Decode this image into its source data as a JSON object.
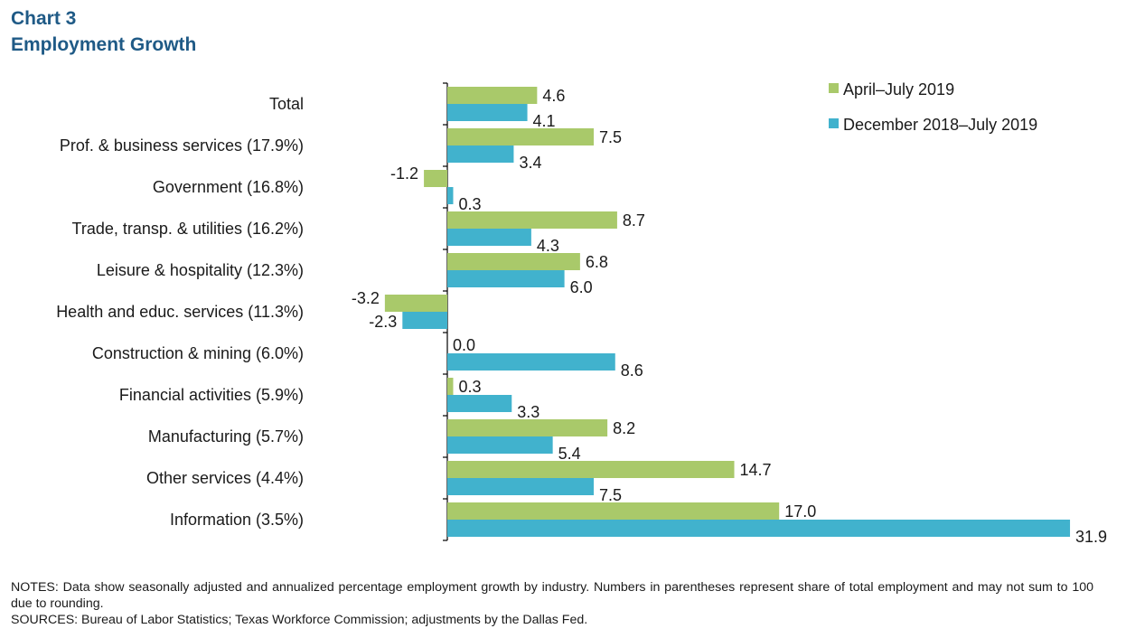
{
  "header": {
    "chart_number": "Chart 3",
    "title": "Employment  Growth"
  },
  "notes": {
    "notes_text": "NOTES:  Data show seasonally adjusted and annualized percentage employment growth by industry. Numbers in parentheses represent share of total employment and may not sum to 100 due to rounding.",
    "sources_text": "SOURCES:  Bureau of Labor Statistics; Texas Workforce Commission; adjustments  by the Dallas Fed."
  },
  "colors": {
    "april_july": "#a9c96a",
    "dec_july": "#41b2cd",
    "axis": "#000000",
    "title": "#1f5a86"
  },
  "chart_data": {
    "type": "bar",
    "orientation": "horizontal",
    "title": "Employment  Growth",
    "xlabel": "",
    "ylabel": "",
    "xlim": [
      -4,
      33
    ],
    "grid": false,
    "legend_position": "top-right",
    "categories": [
      "Total",
      "Prof. & business services (17.9%)",
      "Government (16.8%)",
      "Trade, transp. & utilities (16.2%)",
      "Leisure & hospitality (12.3%)",
      "Health and educ. services (11.3%)",
      "Construction & mining (6.0%)",
      "Financial activities (5.9%)",
      "Manufacturing (5.7%)",
      "Other services (4.4%)",
      "Information (3.5%)"
    ],
    "series": [
      {
        "name": "April–July 2019",
        "color": "#a9c96a",
        "values": [
          4.6,
          7.5,
          -1.2,
          8.7,
          6.8,
          -3.2,
          0.0,
          0.3,
          8.2,
          14.7,
          17.0
        ],
        "labels": [
          "4.6",
          "7.5",
          "-1.2",
          "8.7",
          "6.8",
          "-3.2",
          "0.0",
          "0.3",
          "8.2",
          "14.7",
          "17.0"
        ]
      },
      {
        "name": "December 2018–July 2019",
        "color": "#41b2cd",
        "values": [
          4.1,
          3.4,
          0.3,
          4.3,
          6.0,
          -2.3,
          8.6,
          3.3,
          5.4,
          7.5,
          31.9
        ],
        "labels": [
          "4.1",
          "3.4",
          "0.3",
          "4.3",
          "6.0",
          "-2.3",
          "8.6",
          "3.3",
          "5.4",
          "7.5",
          "31.9"
        ]
      }
    ]
  }
}
